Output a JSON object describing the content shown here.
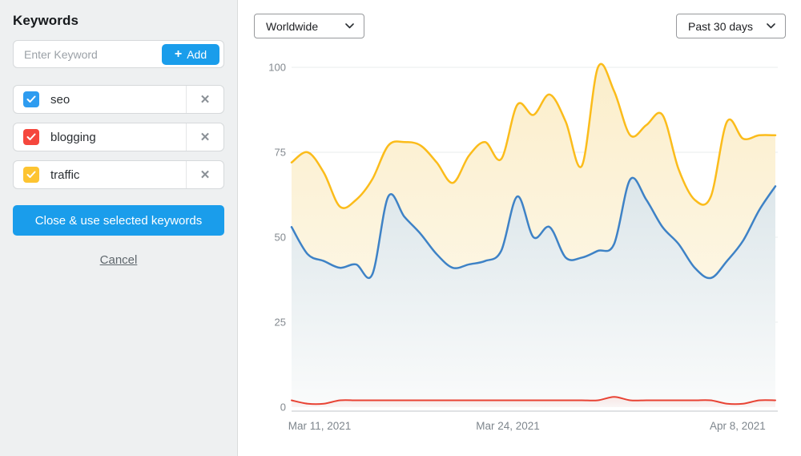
{
  "sidebar": {
    "title": "Keywords",
    "input": {
      "placeholder": "Enter Keyword",
      "add_label": "Add",
      "add_icon": "+"
    },
    "keywords": [
      {
        "label": "seo",
        "checked": true,
        "color": "#2e9cf0"
      },
      {
        "label": "blogging",
        "checked": true,
        "color": "#f5473d"
      },
      {
        "label": "traffic",
        "checked": true,
        "color": "#fdc431"
      }
    ],
    "remove_icon": "✕",
    "close_button": "Close & use selected keywords",
    "cancel_link": "Cancel"
  },
  "toolbar": {
    "region_selected": "Worldwide",
    "range_selected": "Past 30 days"
  },
  "colors": {
    "accent_blue": "#1a9deb",
    "sidebar_bg": "#eef0f1",
    "grid": "#eef0f1",
    "axis_line": "#d6d9db",
    "tick_text": "#83898f"
  },
  "chart_data": {
    "type": "area",
    "title": "",
    "xlabel": "",
    "ylabel": "",
    "ylim": [
      0,
      100
    ],
    "yticks": [
      0,
      25,
      50,
      75,
      100
    ],
    "grid": true,
    "legend_position": "none",
    "x": [
      0,
      1,
      2,
      3,
      4,
      5,
      6,
      7,
      8,
      9,
      10,
      11,
      12,
      13,
      14,
      15,
      16,
      17,
      18,
      19,
      20,
      21,
      22,
      23,
      24,
      25,
      26,
      27,
      28,
      29,
      30
    ],
    "x_ticks": [
      {
        "label": "Mar 11, 2021",
        "pos": 0.058
      },
      {
        "label": "Mar 24, 2021",
        "pos": 0.447
      },
      {
        "label": "Apr 8, 2021",
        "pos": 0.922
      }
    ],
    "series": [
      {
        "name": "traffic",
        "color": "#fbbc1b",
        "fill_top": "#fbeecb",
        "fill_bottom": "#fefaf0",
        "line_width": 2.5,
        "values": [
          72,
          75,
          69,
          59,
          61,
          67,
          77,
          78,
          77,
          72,
          66,
          74,
          78,
          73,
          89,
          86,
          92,
          84,
          71,
          100,
          93,
          80,
          83,
          86,
          70,
          61,
          62,
          84,
          79,
          80,
          80
        ]
      },
      {
        "name": "seo",
        "color": "#3e82c6",
        "fill_top": "#dce6ea",
        "fill_bottom": "#fafbfb",
        "line_width": 2.5,
        "values": [
          53,
          45,
          43,
          41,
          42,
          39,
          62,
          56,
          51,
          45,
          41,
          42,
          43,
          46,
          62,
          50,
          53,
          44,
          44,
          46,
          48,
          67,
          61,
          53,
          48,
          41,
          38,
          43,
          49,
          58,
          65
        ]
      },
      {
        "name": "blogging",
        "color": "#e84334",
        "fill_top": "rgba(232,67,52,0.10)",
        "fill_bottom": "rgba(232,67,52,0.03)",
        "line_width": 2,
        "values": [
          2,
          1,
          1,
          2,
          2,
          2,
          2,
          2,
          2,
          2,
          2,
          2,
          2,
          2,
          2,
          2,
          2,
          2,
          2,
          2,
          3,
          2,
          2,
          2,
          2,
          2,
          2,
          1,
          1,
          2,
          2
        ]
      }
    ]
  }
}
